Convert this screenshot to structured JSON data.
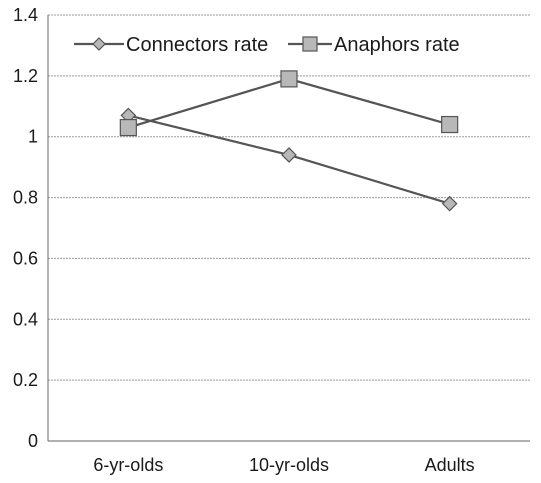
{
  "chart_data": {
    "type": "line",
    "categories": [
      "6-yr-olds",
      "10-yr-olds",
      "Adults"
    ],
    "series": [
      {
        "name": "Connectors rate",
        "marker": "diamond",
        "values": [
          1.07,
          0.94,
          0.78
        ]
      },
      {
        "name": "Anaphors rate",
        "marker": "square",
        "values": [
          1.03,
          1.19,
          1.04
        ]
      }
    ],
    "ylim": [
      0,
      1.4
    ],
    "yticks": [
      "0",
      "0.2",
      "0.4",
      "0.6",
      "0.8",
      "1",
      "1.2",
      "1.4"
    ],
    "grid": true,
    "legend_position": "top",
    "colors": {
      "line": "#555555",
      "marker_fill": "#b8b8b8",
      "grid": "#9a9a9a"
    }
  }
}
